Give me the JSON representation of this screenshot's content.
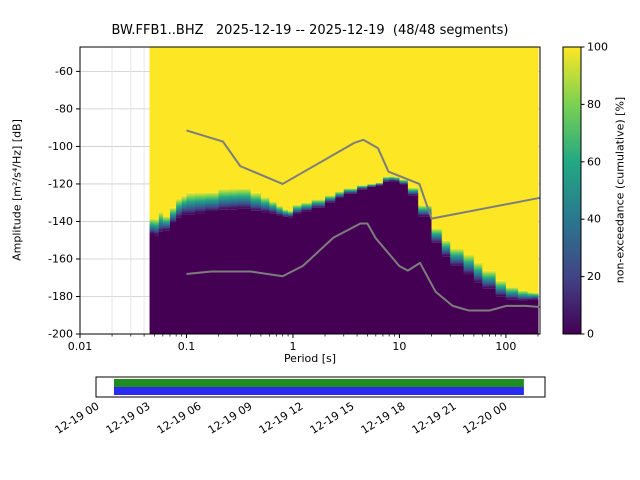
{
  "title": "BW.FFB1..BHZ   2025-12-19 -- 2025-12-19  (48/48 segments)",
  "chart_data": {
    "type": "heatmap",
    "title": "BW.FFB1..BHZ   2025-12-19 -- 2025-12-19  (48/48 segments)",
    "xlabel": "Period [s]",
    "ylabel": "Amplitude [m²/s⁴/Hz] [dB]",
    "colorbar_label": "non-exceedance (cumulative) [%]",
    "x_scale": "log",
    "xlim": [
      0.01,
      209
    ],
    "ylim": [
      -200,
      -47
    ],
    "x_ticks": {
      "values": [
        0.01,
        0.1,
        1,
        10,
        100
      ],
      "labels": [
        "0.01",
        "0.1",
        "1",
        "10",
        "100"
      ]
    },
    "y_ticks": [
      -60,
      -80,
      -100,
      -120,
      -140,
      -160,
      -180,
      -200
    ],
    "grid": true,
    "colorbar": {
      "ticks": [
        0,
        20,
        40,
        60,
        80,
        100
      ],
      "cmap": "viridis",
      "cmap_stops": [
        [
          0,
          "#440154"
        ],
        [
          0.2,
          "#414487"
        ],
        [
          0.4,
          "#2a788e"
        ],
        [
          0.6,
          "#22a884"
        ],
        [
          0.8,
          "#7ad151"
        ],
        [
          1,
          "#fde725"
        ]
      ]
    },
    "histogram": {
      "comment": "cumulative PPSD: yellow above db_max (100%), viridis transition band between db_max and db_dark, dark purple (0%) from db_dark down to db_min",
      "db_min": -200,
      "periods": [
        0.045,
        0.05,
        0.055,
        0.06,
        0.07,
        0.08,
        0.09,
        0.1,
        0.12,
        0.15,
        0.2,
        0.25,
        0.3,
        0.4,
        0.5,
        0.6,
        0.7,
        0.8,
        0.9,
        1.0,
        1.2,
        1.5,
        2.0,
        2.5,
        3.0,
        4.0,
        5.0,
        6.0,
        7.0,
        8.0,
        9.0,
        10,
        12,
        15,
        20,
        25,
        30,
        40,
        50,
        60,
        80,
        100,
        130,
        160,
        179,
        200
      ],
      "db_max": [
        -137,
        -140,
        -136,
        -138,
        -133,
        -128,
        -126,
        -124,
        -123.5,
        -123,
        -124,
        -123.5,
        -123,
        -125,
        -127,
        -129,
        -131,
        -132.5,
        -133,
        -132.5,
        -131,
        -129,
        -126.5,
        -124,
        -122,
        -120,
        -119,
        -118,
        -117.5,
        -117,
        -117,
        -118,
        -122,
        -131,
        -143,
        -149,
        -153,
        -159,
        -163,
        -167,
        -172,
        -175,
        -176.5,
        -177,
        -177,
        -177
      ],
      "db_dark": [
        -146,
        -148,
        -146,
        -145,
        -141,
        -138,
        -136,
        -136,
        -135,
        -134,
        -134.5,
        -134,
        -133.5,
        -134.5,
        -135,
        -135.5,
        -136.5,
        -137,
        -137,
        -136.5,
        -135,
        -133,
        -130,
        -127.5,
        -125,
        -122.5,
        -121,
        -120,
        -119.5,
        -119,
        -119,
        -120.5,
        -126,
        -137,
        -151,
        -158,
        -163,
        -169,
        -173,
        -176,
        -180,
        -181.5,
        -182,
        -181.5,
        -181,
        -181
      ]
    },
    "noise_models": {
      "color": "#7d7d7d",
      "high": {
        "name": "NHNM",
        "periods": [
          0.1,
          0.22,
          0.32,
          0.8,
          3.8,
          4.6,
          6.3,
          7.9,
          15.4,
          20,
          209
        ],
        "db": [
          -91.5,
          -97.4,
          -110.5,
          -120.0,
          -98.0,
          -96.5,
          -101.0,
          -113.5,
          -120.0,
          -138.5,
          -127.4
        ]
      },
      "low": {
        "name": "NLNM",
        "periods": [
          0.1,
          0.17,
          0.4,
          0.8,
          1.24,
          2.4,
          4.3,
          5.0,
          6.0,
          10.0,
          12.0,
          15.6,
          21.9,
          31.6,
          45.0,
          70.0,
          101.0,
          154.0,
          209
        ],
        "db": [
          -168.0,
          -166.7,
          -166.7,
          -169.2,
          -163.7,
          -148.6,
          -141.1,
          -141.1,
          -149.0,
          -163.8,
          -166.2,
          -162.1,
          -177.5,
          -185.0,
          -187.5,
          -187.5,
          -185.0,
          -185.0,
          -185.6
        ]
      }
    },
    "colors": {
      "full": "#fde725",
      "empty": "#440154",
      "grid_major": "#cccccc",
      "grid_minor": "#e1e1e1"
    }
  },
  "timeline": {
    "labels": [
      "12-19 00",
      "12-19 03",
      "12-19 06",
      "12-19 09",
      "12-19 12",
      "12-19 15",
      "12-19 18",
      "12-19 21",
      "12-20 00"
    ],
    "coverage": {
      "start_frac": 0.04,
      "end_frac": 0.953
    },
    "colors": {
      "top": "#1e8c1e",
      "bottom": "#2b2bf0"
    }
  }
}
